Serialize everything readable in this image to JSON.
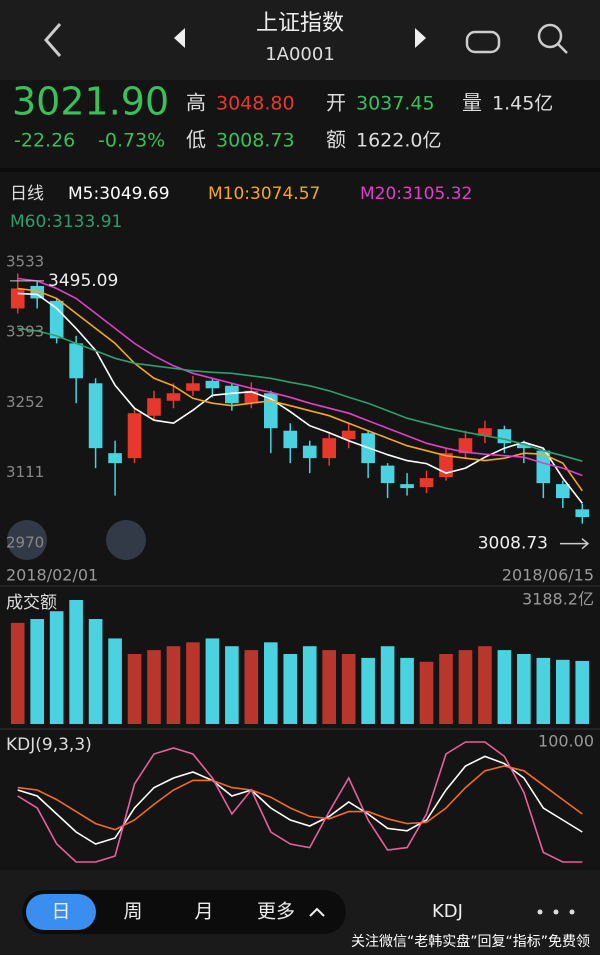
{
  "header": {
    "title": "上证指数",
    "code": "1A0001"
  },
  "quote": {
    "price": "3021.90",
    "change": "-22.26",
    "pct": "-0.73%",
    "high_label": "高",
    "high": "3048.80",
    "open_label": "开",
    "open": "3037.45",
    "vol_label": "量",
    "vol": "1.45亿",
    "low_label": "低",
    "low": "3008.73",
    "amt_label": "额",
    "amt": "1622.0亿"
  },
  "ma_legend": {
    "period": "日线",
    "items": [
      {
        "label": "M5:3049.69",
        "color": "#ffffff"
      },
      {
        "label": "M10:3074.57",
        "color": "#f5a623"
      },
      {
        "label": "M20:3105.32",
        "color": "#e040c8"
      },
      {
        "label": "M60:3133.91",
        "color": "#2e9e6e"
      }
    ]
  },
  "chart_data": [
    {
      "type": "candlestick",
      "up_color": "#e8382c",
      "down_color": "#4ad2e0",
      "categories": [
        "2018/02/01",
        null,
        null,
        null,
        null,
        null,
        null,
        null,
        null,
        null,
        null,
        null,
        null,
        null,
        null,
        null,
        null,
        null,
        null,
        null,
        null,
        null,
        null,
        null,
        null,
        null,
        null,
        null,
        null,
        "2018/06/15"
      ],
      "ohlc": [
        [
          3440,
          3510,
          3430,
          3480
        ],
        [
          3485,
          3495.09,
          3440,
          3460
        ],
        [
          3455,
          3460,
          3370,
          3380
        ],
        [
          3370,
          3385,
          3250,
          3300
        ],
        [
          3290,
          3300,
          3120,
          3160
        ],
        [
          3150,
          3175,
          3065,
          3130
        ],
        [
          3140,
          3240,
          3130,
          3230
        ],
        [
          3225,
          3275,
          3215,
          3260
        ],
        [
          3255,
          3290,
          3240,
          3270
        ],
        [
          3275,
          3305,
          3265,
          3290
        ],
        [
          3295,
          3300,
          3262,
          3280
        ],
        [
          3285,
          3290,
          3235,
          3250
        ],
        [
          3250,
          3292,
          3240,
          3275
        ],
        [
          3270,
          3275,
          3150,
          3200
        ],
        [
          3195,
          3210,
          3130,
          3160
        ],
        [
          3165,
          3175,
          3110,
          3140
        ],
        [
          3140,
          3192,
          3125,
          3180
        ],
        [
          3178,
          3210,
          3160,
          3195
        ],
        [
          3190,
          3195,
          3100,
          3130
        ],
        [
          3125,
          3130,
          3060,
          3090
        ],
        [
          3088,
          3110,
          3065,
          3080
        ],
        [
          3082,
          3115,
          3070,
          3100
        ],
        [
          3102,
          3160,
          3095,
          3150
        ],
        [
          3150,
          3195,
          3140,
          3180
        ],
        [
          3185,
          3215,
          3170,
          3200
        ],
        [
          3198,
          3205,
          3150,
          3170
        ],
        [
          3168,
          3175,
          3130,
          3160
        ],
        [
          3155,
          3160,
          3060,
          3090
        ],
        [
          3088,
          3095,
          3040,
          3060
        ],
        [
          3037.45,
          3048.8,
          3008.73,
          3021.9
        ]
      ],
      "series": [
        {
          "name": "M5",
          "color": "#ffffff",
          "values": [
            3470,
            3468,
            3440,
            3400,
            3356,
            3286,
            3240,
            3216,
            3210,
            3236,
            3266,
            3270,
            3273,
            3259,
            3233,
            3205,
            3191,
            3175,
            3161,
            3147,
            3135,
            3129,
            3110,
            3120,
            3142,
            3160,
            3172,
            3160,
            3100,
            3049.69
          ]
        },
        {
          "name": "M10",
          "color": "#f5a623",
          "values": [
            3480,
            3475,
            3460,
            3430,
            3400,
            3370,
            3330,
            3300,
            3285,
            3260,
            3250,
            3245,
            3250,
            3255,
            3245,
            3235,
            3225,
            3210,
            3195,
            3180,
            3165,
            3155,
            3145,
            3140,
            3135,
            3140,
            3150,
            3148,
            3130,
            3074.57
          ]
        },
        {
          "name": "M20",
          "color": "#e040c8",
          "values": [
            3500,
            3495,
            3480,
            3460,
            3430,
            3400,
            3370,
            3345,
            3325,
            3310,
            3300,
            3290,
            3280,
            3272,
            3262,
            3250,
            3240,
            3230,
            3215,
            3200,
            3185,
            3170,
            3160,
            3152,
            3148,
            3145,
            3142,
            3130,
            3120,
            3105.32
          ]
        },
        {
          "name": "M60",
          "color": "#2e9e6e",
          "values": [
            3400,
            3395,
            3385,
            3370,
            3355,
            3340,
            3330,
            3325,
            3320,
            3315,
            3312,
            3310,
            3305,
            3300,
            3292,
            3285,
            3275,
            3262,
            3250,
            3235,
            3220,
            3210,
            3200,
            3192,
            3185,
            3178,
            3168,
            3155,
            3145,
            3133.91
          ]
        }
      ],
      "ylim": [
        2970,
        3533
      ],
      "yticks": [
        2970,
        3111,
        3252,
        3393,
        3533
      ],
      "annotations": [
        {
          "text": "3495.09",
          "value": 3495.09
        },
        {
          "text": "3008.73",
          "value": 3008.73
        }
      ]
    },
    {
      "type": "bar",
      "title": "成交额",
      "up_color": "#b8362c",
      "down_color": "#4ad2e0",
      "values": [
        2600,
        2700,
        2900,
        3188.2,
        2700,
        2200,
        1800,
        1900,
        2000,
        2100,
        2200,
        2000,
        1900,
        2100,
        1800,
        2000,
        1900,
        1800,
        1700,
        2000,
        1700,
        1600,
        1800,
        1900,
        2000,
        1900,
        1800,
        1700,
        1650,
        1622
      ],
      "ylim": [
        0,
        3188.2
      ],
      "yticks": [
        {
          "value": 3188.2,
          "label": "3188.2亿"
        }
      ]
    },
    {
      "type": "line",
      "title": "KDJ(9,3,3)",
      "series": [
        {
          "name": "K",
          "color": "#ffffff",
          "values": [
            60,
            55,
            40,
            25,
            15,
            20,
            45,
            62,
            70,
            75,
            68,
            55,
            60,
            45,
            35,
            30,
            38,
            50,
            40,
            28,
            26,
            35,
            60,
            80,
            88,
            82,
            70,
            45,
            35,
            25
          ]
        },
        {
          "name": "D",
          "color": "#f26b2a",
          "values": [
            62,
            60,
            52,
            42,
            32,
            27,
            35,
            48,
            60,
            68,
            68,
            62,
            60,
            54,
            45,
            38,
            36,
            42,
            42,
            36,
            32,
            33,
            45,
            62,
            76,
            80,
            76,
            64,
            52,
            40
          ]
        },
        {
          "name": "J",
          "color": "#e8609a",
          "values": [
            55,
            45,
            15,
            0,
            0,
            5,
            65,
            90,
            95,
            90,
            70,
            40,
            60,
            25,
            15,
            12,
            42,
            70,
            35,
            10,
            12,
            40,
            90,
            100,
            100,
            88,
            58,
            8,
            0,
            0
          ]
        }
      ],
      "ylim": [
        0,
        100
      ],
      "yticks": [
        {
          "value": 100,
          "label": "100.00"
        }
      ]
    }
  ],
  "footer": {
    "tabs": [
      "日",
      "周",
      "月",
      "更多"
    ],
    "indicator": "KDJ",
    "watermark": "关注微信“老韩实盘”回复“指标”免费领"
  }
}
